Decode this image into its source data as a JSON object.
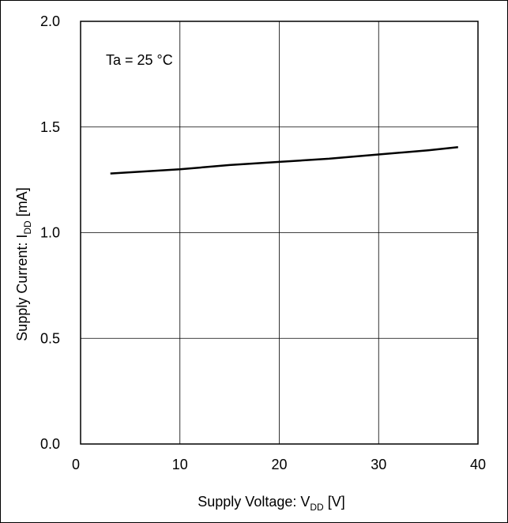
{
  "chart_data": {
    "type": "line",
    "annotation": "Ta = 25 °C",
    "xlabel": {
      "main": "Supply Voltage: V",
      "sub": "DD",
      "unit": " [V]"
    },
    "ylabel": {
      "main": "Supply Current: I",
      "sub": "DD",
      "unit": " [mA]"
    },
    "xlim": [
      0,
      40
    ],
    "ylim": [
      0.0,
      2.0
    ],
    "x_ticks": [
      0,
      10,
      20,
      30,
      40
    ],
    "x_tick_labels": [
      "0",
      "10",
      "20",
      "30",
      "40"
    ],
    "y_ticks": [
      0.0,
      0.5,
      1.0,
      1.5,
      2.0
    ],
    "y_tick_labels": [
      "0.0",
      "0.5",
      "1.0",
      "1.5",
      "2.0"
    ],
    "grid": true,
    "series": [
      {
        "color": "#000000",
        "x": [
          3,
          10,
          15,
          20,
          25,
          30,
          35,
          38
        ],
        "y": [
          1.28,
          1.3,
          1.32,
          1.335,
          1.35,
          1.37,
          1.39,
          1.405
        ]
      }
    ]
  }
}
